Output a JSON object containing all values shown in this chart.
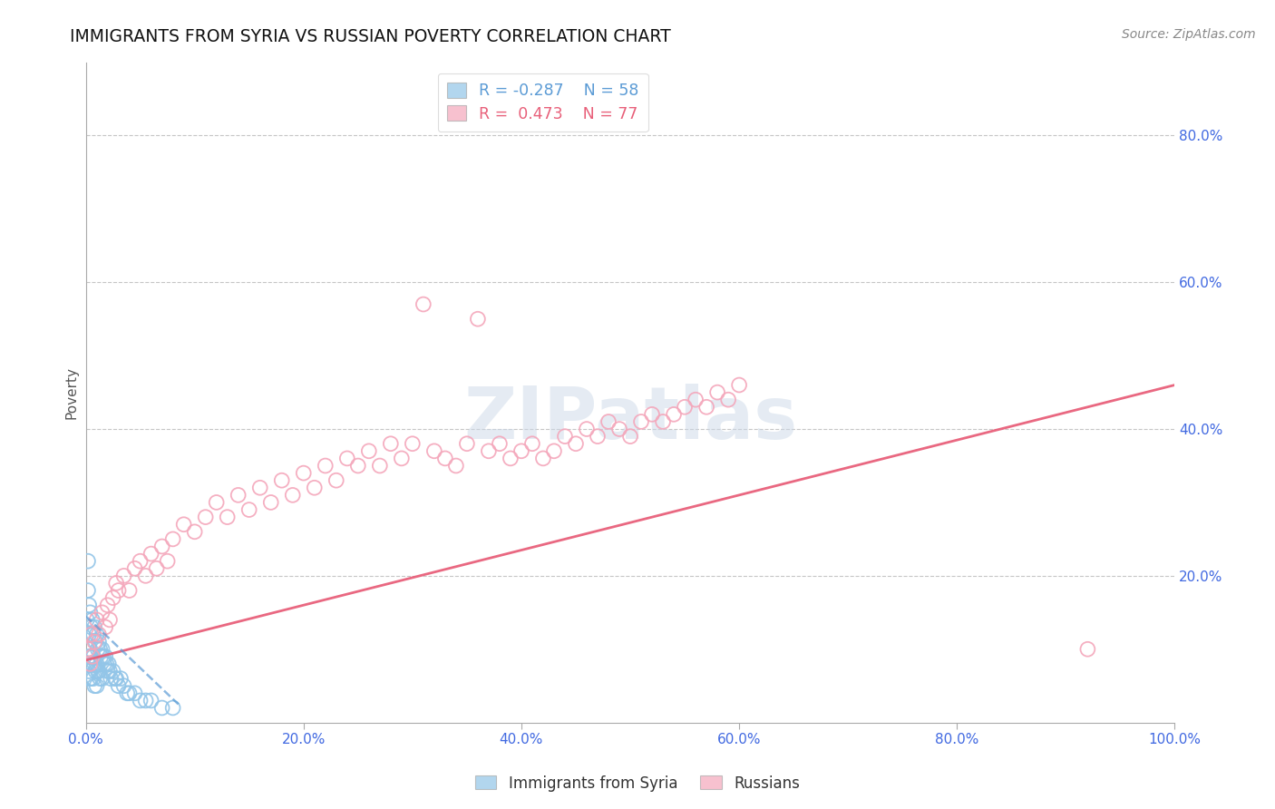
{
  "title": "IMMIGRANTS FROM SYRIA VS RUSSIAN POVERTY CORRELATION CHART",
  "source": "Source: ZipAtlas.com",
  "ylabel": "Poverty",
  "xlim": [
    0.0,
    1.0
  ],
  "ylim": [
    0.0,
    0.9
  ],
  "xticks": [
    0.0,
    0.2,
    0.4,
    0.6,
    0.8,
    1.0
  ],
  "xtick_labels": [
    "0.0%",
    "20.0%",
    "40.0%",
    "60.0%",
    "80.0%",
    "100.0%"
  ],
  "yticks": [
    0.2,
    0.4,
    0.6,
    0.8
  ],
  "ytick_labels": [
    "20.0%",
    "40.0%",
    "60.0%",
    "80.0%"
  ],
  "legend1_R": "-0.287",
  "legend1_N": "58",
  "legend2_R": "0.473",
  "legend2_N": "77",
  "blue_color": "#92c5e8",
  "pink_color": "#f4a7bb",
  "blue_line_color": "#5b9bd5",
  "pink_line_color": "#e8607a",
  "tick_color": "#4169e1",
  "background_color": "#ffffff",
  "blue_scatter_x": [
    0.001,
    0.002,
    0.002,
    0.002,
    0.003,
    0.003,
    0.003,
    0.003,
    0.004,
    0.004,
    0.004,
    0.005,
    0.005,
    0.005,
    0.006,
    0.006,
    0.007,
    0.007,
    0.007,
    0.008,
    0.008,
    0.008,
    0.009,
    0.009,
    0.01,
    0.01,
    0.01,
    0.011,
    0.011,
    0.012,
    0.012,
    0.013,
    0.013,
    0.014,
    0.015,
    0.015,
    0.016,
    0.017,
    0.018,
    0.019,
    0.02,
    0.021,
    0.022,
    0.023,
    0.025,
    0.027,
    0.028,
    0.03,
    0.032,
    0.035,
    0.038,
    0.04,
    0.045,
    0.05,
    0.055,
    0.06,
    0.07,
    0.08
  ],
  "blue_scatter_y": [
    0.14,
    0.22,
    0.18,
    0.08,
    0.16,
    0.12,
    0.09,
    0.07,
    0.15,
    0.1,
    0.06,
    0.13,
    0.09,
    0.06,
    0.14,
    0.08,
    0.12,
    0.09,
    0.06,
    0.13,
    0.08,
    0.05,
    0.11,
    0.07,
    0.12,
    0.08,
    0.05,
    0.1,
    0.07,
    0.11,
    0.07,
    0.1,
    0.06,
    0.09,
    0.1,
    0.06,
    0.09,
    0.08,
    0.09,
    0.08,
    0.07,
    0.08,
    0.07,
    0.06,
    0.07,
    0.06,
    0.06,
    0.05,
    0.06,
    0.05,
    0.04,
    0.04,
    0.04,
    0.03,
    0.03,
    0.03,
    0.02,
    0.02
  ],
  "pink_scatter_x": [
    0.002,
    0.004,
    0.005,
    0.006,
    0.008,
    0.01,
    0.012,
    0.015,
    0.018,
    0.02,
    0.022,
    0.025,
    0.028,
    0.03,
    0.035,
    0.04,
    0.045,
    0.05,
    0.055,
    0.06,
    0.065,
    0.07,
    0.075,
    0.08,
    0.09,
    0.1,
    0.11,
    0.12,
    0.13,
    0.14,
    0.15,
    0.16,
    0.17,
    0.18,
    0.19,
    0.2,
    0.21,
    0.22,
    0.23,
    0.24,
    0.25,
    0.26,
    0.27,
    0.28,
    0.29,
    0.3,
    0.31,
    0.32,
    0.33,
    0.34,
    0.35,
    0.36,
    0.37,
    0.38,
    0.39,
    0.4,
    0.41,
    0.42,
    0.43,
    0.44,
    0.45,
    0.46,
    0.47,
    0.48,
    0.49,
    0.5,
    0.51,
    0.52,
    0.53,
    0.54,
    0.55,
    0.56,
    0.57,
    0.58,
    0.59,
    0.6,
    0.92
  ],
  "pink_scatter_y": [
    0.1,
    0.08,
    0.12,
    0.09,
    0.11,
    0.14,
    0.12,
    0.15,
    0.13,
    0.16,
    0.14,
    0.17,
    0.19,
    0.18,
    0.2,
    0.18,
    0.21,
    0.22,
    0.2,
    0.23,
    0.21,
    0.24,
    0.22,
    0.25,
    0.27,
    0.26,
    0.28,
    0.3,
    0.28,
    0.31,
    0.29,
    0.32,
    0.3,
    0.33,
    0.31,
    0.34,
    0.32,
    0.35,
    0.33,
    0.36,
    0.35,
    0.37,
    0.35,
    0.38,
    0.36,
    0.38,
    0.57,
    0.37,
    0.36,
    0.35,
    0.38,
    0.55,
    0.37,
    0.38,
    0.36,
    0.37,
    0.38,
    0.36,
    0.37,
    0.39,
    0.38,
    0.4,
    0.39,
    0.41,
    0.4,
    0.39,
    0.41,
    0.42,
    0.41,
    0.42,
    0.43,
    0.44,
    0.43,
    0.45,
    0.44,
    0.46,
    0.1
  ],
  "pink_line_x": [
    0.0,
    1.0
  ],
  "pink_line_y": [
    0.085,
    0.46
  ],
  "blue_line_x": [
    0.0,
    0.085
  ],
  "blue_line_y": [
    0.145,
    0.025
  ]
}
